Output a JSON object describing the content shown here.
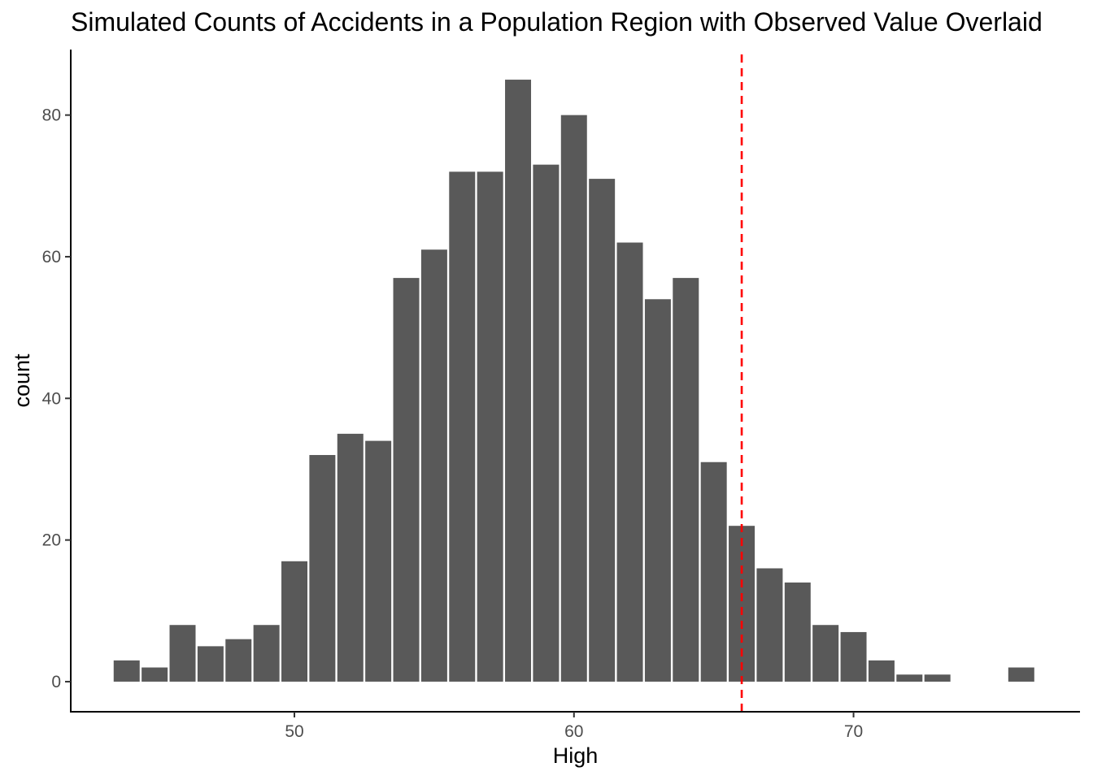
{
  "chart_data": {
    "type": "bar",
    "title": "Simulated Counts of Accidents in a Population Region with Observed Value Overlaid",
    "xlabel": "High",
    "ylabel": "count",
    "x": [
      44,
      45,
      46,
      47,
      48,
      49,
      50,
      51,
      52,
      53,
      54,
      55,
      56,
      57,
      58,
      59,
      60,
      61,
      62,
      63,
      64,
      65,
      66,
      67,
      68,
      69,
      70,
      71,
      72,
      73,
      76
    ],
    "values": [
      3,
      2,
      8,
      5,
      6,
      8,
      17,
      32,
      35,
      34,
      57,
      61,
      72,
      72,
      85,
      73,
      80,
      71,
      62,
      54,
      57,
      31,
      22,
      16,
      14,
      8,
      7,
      3,
      1,
      1,
      2
    ],
    "xlim": [
      42,
      78.1
    ],
    "ylim": [
      -4.25,
      89.25
    ],
    "x_ticks": [
      50,
      60,
      70
    ],
    "y_ticks": [
      0,
      20,
      40,
      60,
      80
    ],
    "observed_value": 66,
    "bar_color": "#595959",
    "observed_line_color": "#ff0000",
    "grid": false,
    "legend": "none"
  }
}
